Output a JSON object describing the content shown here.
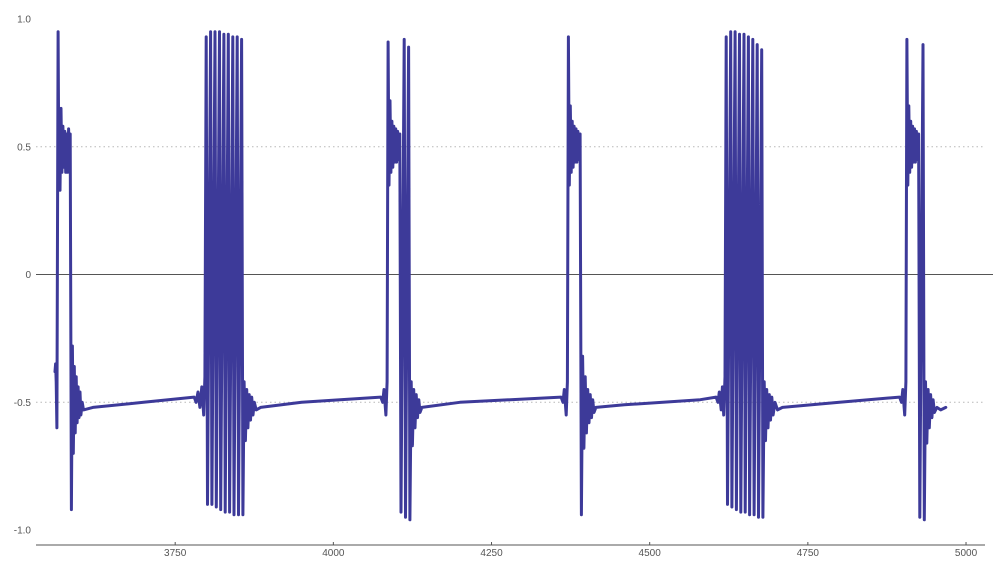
{
  "colors": {
    "series": "#3d3a99",
    "axis": "#555555",
    "grid": "#b8b8b8",
    "tick_text": "#555555"
  },
  "chart_data": {
    "type": "line",
    "title": "",
    "xlabel": "",
    "ylabel": "",
    "xlim": [
      3530,
      5030
    ],
    "ylim": [
      -1.0,
      1.0
    ],
    "x_ticks": [
      3750,
      4000,
      4250,
      4500,
      4750,
      5000
    ],
    "x_tick_labels": [
      "3750",
      "4000",
      "4250",
      "4500",
      "4750",
      "5000"
    ],
    "y_ticks": [
      -1.0,
      -0.5,
      0,
      0.5,
      1.0
    ],
    "y_tick_labels": [
      "-1.0",
      "-0.5",
      "0",
      "0.5",
      "1.0"
    ],
    "y_gridlines": [
      -0.5,
      0.5
    ],
    "grid_style": "dotted",
    "x_axis_at_y": 0,
    "legend": "none",
    "series": [
      {
        "points": [
          [
            3560.0,
            -0.38
          ],
          [
            3561.0,
            -0.35
          ],
          [
            3562.0,
            -0.42
          ],
          [
            3563.0,
            -0.6
          ],
          [
            3565.0,
            0.95
          ],
          [
            3566.0,
            0.42
          ],
          [
            3567.5,
            0.6
          ],
          [
            3568.0,
            0.33
          ],
          [
            3569.5,
            0.65
          ],
          [
            3571.0,
            0.4
          ],
          [
            3572.5,
            0.58
          ],
          [
            3574.0,
            0.42
          ],
          [
            3575.5,
            0.56
          ],
          [
            3577.0,
            0.4
          ],
          [
            3578.5,
            0.55
          ],
          [
            3580.0,
            0.4
          ],
          [
            3581.5,
            0.57
          ],
          [
            3583.0,
            0.42
          ],
          [
            3584.0,
            0.55
          ],
          [
            3586.0,
            -0.92
          ],
          [
            3587.5,
            -0.28
          ],
          [
            3589.0,
            -0.7
          ],
          [
            3590.5,
            -0.36
          ],
          [
            3592.0,
            -0.62
          ],
          [
            3593.5,
            -0.4
          ],
          [
            3595.0,
            -0.58
          ],
          [
            3596.5,
            -0.44
          ],
          [
            3598.0,
            -0.56
          ],
          [
            3599.5,
            -0.46
          ],
          [
            3601.0,
            -0.55
          ],
          [
            3603.0,
            -0.5
          ],
          [
            3605.0,
            -0.53
          ],
          [
            3620.0,
            -0.52
          ],
          [
            3700.0,
            -0.5
          ],
          [
            3780.0,
            -0.48
          ],
          [
            3783.0,
            -0.5
          ],
          [
            3786.0,
            -0.46
          ],
          [
            3789.0,
            -0.52
          ],
          [
            3792.0,
            -0.44
          ],
          [
            3795.0,
            -0.55
          ],
          [
            3797.0,
            -0.4
          ],
          [
            3799.0,
            0.93
          ],
          [
            3801.0,
            -0.9
          ],
          [
            3806.0,
            0.95
          ],
          [
            3808.0,
            -0.9
          ],
          [
            3813.0,
            0.95
          ],
          [
            3815.0,
            -0.91
          ],
          [
            3820.0,
            0.95
          ],
          [
            3822.0,
            -0.92
          ],
          [
            3827.0,
            0.94
          ],
          [
            3829.0,
            -0.93
          ],
          [
            3834.0,
            0.94
          ],
          [
            3836.0,
            -0.93
          ],
          [
            3841.0,
            0.93
          ],
          [
            3843.0,
            -0.94
          ],
          [
            3848.0,
            0.93
          ],
          [
            3850.0,
            -0.94
          ],
          [
            3855.0,
            0.92
          ],
          [
            3857.0,
            -0.94
          ],
          [
            3859.0,
            -0.42
          ],
          [
            3861.0,
            -0.65
          ],
          [
            3863.0,
            -0.45
          ],
          [
            3865.0,
            -0.6
          ],
          [
            3867.0,
            -0.47
          ],
          [
            3869.0,
            -0.57
          ],
          [
            3871.0,
            -0.48
          ],
          [
            3873.0,
            -0.55
          ],
          [
            3875.0,
            -0.5
          ],
          [
            3878.0,
            -0.53
          ],
          [
            3885.0,
            -0.52
          ],
          [
            3950.0,
            -0.5
          ],
          [
            4075.0,
            -0.48
          ],
          [
            4078.0,
            -0.5
          ],
          [
            4080.0,
            -0.45
          ],
          [
            4083.0,
            -0.55
          ],
          [
            4085.0,
            -0.42
          ],
          [
            4086.5,
            0.91
          ],
          [
            4088.0,
            0.35
          ],
          [
            4089.5,
            0.68
          ],
          [
            4091.0,
            0.4
          ],
          [
            4092.5,
            0.6
          ],
          [
            4094.0,
            0.42
          ],
          [
            4095.5,
            0.58
          ],
          [
            4097.0,
            0.44
          ],
          [
            4098.5,
            0.57
          ],
          [
            4100.0,
            0.44
          ],
          [
            4101.5,
            0.56
          ],
          [
            4103.0,
            0.45
          ],
          [
            4105.0,
            0.55
          ],
          [
            4107.0,
            -0.93
          ],
          [
            4112.0,
            0.92
          ],
          [
            4114.0,
            -0.95
          ],
          [
            4119.0,
            0.89
          ],
          [
            4121.0,
            -0.96
          ],
          [
            4123.0,
            -0.42
          ],
          [
            4125.0,
            -0.67
          ],
          [
            4127.0,
            -0.45
          ],
          [
            4129.0,
            -0.6
          ],
          [
            4131.0,
            -0.47
          ],
          [
            4133.0,
            -0.56
          ],
          [
            4135.0,
            -0.49
          ],
          [
            4137.0,
            -0.54
          ],
          [
            4140.0,
            -0.52
          ],
          [
            4200.0,
            -0.5
          ],
          [
            4360.0,
            -0.48
          ],
          [
            4363.0,
            -0.5
          ],
          [
            4365.0,
            -0.45
          ],
          [
            4368.0,
            -0.55
          ],
          [
            4370.0,
            -0.42
          ],
          [
            4371.5,
            0.93
          ],
          [
            4373.0,
            0.35
          ],
          [
            4374.5,
            0.66
          ],
          [
            4376.0,
            0.4
          ],
          [
            4377.5,
            0.6
          ],
          [
            4379.0,
            0.42
          ],
          [
            4380.5,
            0.58
          ],
          [
            4382.0,
            0.44
          ],
          [
            4383.5,
            0.57
          ],
          [
            4385.0,
            0.44
          ],
          [
            4386.5,
            0.56
          ],
          [
            4388.0,
            0.45
          ],
          [
            4390.0,
            0.55
          ],
          [
            4392.0,
            -0.94
          ],
          [
            4394.0,
            -0.32
          ],
          [
            4396.0,
            -0.68
          ],
          [
            4398.0,
            -0.4
          ],
          [
            4400.0,
            -0.62
          ],
          [
            4402.0,
            -0.45
          ],
          [
            4404.0,
            -0.58
          ],
          [
            4406.0,
            -0.47
          ],
          [
            4408.0,
            -0.56
          ],
          [
            4410.0,
            -0.49
          ],
          [
            4412.0,
            -0.54
          ],
          [
            4415.0,
            -0.52
          ],
          [
            4460.0,
            -0.51
          ],
          [
            4580.0,
            -0.49
          ],
          [
            4605.0,
            -0.48
          ],
          [
            4608.0,
            -0.5
          ],
          [
            4610.0,
            -0.46
          ],
          [
            4613.0,
            -0.53
          ],
          [
            4615.0,
            -0.44
          ],
          [
            4617.0,
            -0.55
          ],
          [
            4619.0,
            -0.4
          ],
          [
            4621.0,
            0.93
          ],
          [
            4623.0,
            -0.9
          ],
          [
            4628.0,
            0.95
          ],
          [
            4630.0,
            -0.91
          ],
          [
            4635.0,
            0.95
          ],
          [
            4637.0,
            -0.92
          ],
          [
            4642.0,
            0.94
          ],
          [
            4644.0,
            -0.93
          ],
          [
            4649.0,
            0.94
          ],
          [
            4651.0,
            -0.93
          ],
          [
            4656.0,
            0.93
          ],
          [
            4658.0,
            -0.94
          ],
          [
            4663.0,
            0.92
          ],
          [
            4665.0,
            -0.94
          ],
          [
            4670.0,
            0.9
          ],
          [
            4672.0,
            -0.95
          ],
          [
            4677.0,
            0.88
          ],
          [
            4679.0,
            -0.95
          ],
          [
            4681.0,
            -0.42
          ],
          [
            4683.0,
            -0.65
          ],
          [
            4685.0,
            -0.45
          ],
          [
            4687.0,
            -0.6
          ],
          [
            4689.0,
            -0.47
          ],
          [
            4691.0,
            -0.57
          ],
          [
            4693.0,
            -0.48
          ],
          [
            4695.0,
            -0.55
          ],
          [
            4698.0,
            -0.5
          ],
          [
            4702.0,
            -0.53
          ],
          [
            4710.0,
            -0.52
          ],
          [
            4800.0,
            -0.5
          ],
          [
            4895.0,
            -0.48
          ],
          [
            4898.0,
            -0.5
          ],
          [
            4900.0,
            -0.45
          ],
          [
            4903.0,
            -0.55
          ],
          [
            4905.0,
            -0.42
          ],
          [
            4906.5,
            0.92
          ],
          [
            4908.0,
            0.35
          ],
          [
            4909.5,
            0.66
          ],
          [
            4911.0,
            0.4
          ],
          [
            4912.5,
            0.6
          ],
          [
            4914.0,
            0.42
          ],
          [
            4915.5,
            0.58
          ],
          [
            4917.0,
            0.44
          ],
          [
            4918.5,
            0.57
          ],
          [
            4920.0,
            0.44
          ],
          [
            4921.5,
            0.56
          ],
          [
            4923.0,
            0.45
          ],
          [
            4925.0,
            0.55
          ],
          [
            4927.0,
            -0.95
          ],
          [
            4932.0,
            0.9
          ],
          [
            4934.0,
            -0.96
          ],
          [
            4936.0,
            -0.42
          ],
          [
            4938.0,
            -0.66
          ],
          [
            4940.0,
            -0.45
          ],
          [
            4942.0,
            -0.6
          ],
          [
            4944.0,
            -0.47
          ],
          [
            4946.0,
            -0.56
          ],
          [
            4948.0,
            -0.49
          ],
          [
            4950.0,
            -0.54
          ],
          [
            4954.0,
            -0.52
          ],
          [
            4960.0,
            -0.53
          ],
          [
            4968.0,
            -0.52
          ]
        ]
      }
    ]
  }
}
